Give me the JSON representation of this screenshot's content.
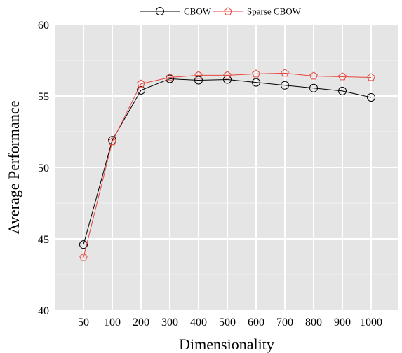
{
  "chart_data": {
    "type": "line",
    "title": "",
    "xlabel": "Dimensionality",
    "ylabel": "Average Performance",
    "categories": [
      "50",
      "100",
      "200",
      "300",
      "400",
      "500",
      "600",
      "700",
      "800",
      "900",
      "1000"
    ],
    "ylim": [
      40,
      60
    ],
    "yticks": [
      "40",
      "45",
      "50",
      "55",
      "60"
    ],
    "grid": true,
    "legend_position": "top",
    "series": [
      {
        "name": "CBOW",
        "marker": "circle",
        "color": "#000000",
        "values": [
          44.6,
          51.9,
          55.4,
          56.2,
          56.1,
          56.15,
          55.95,
          55.75,
          55.55,
          55.35,
          54.9
        ]
      },
      {
        "name": "Sparse CBOW",
        "marker": "pentagon",
        "color": "#e8453c",
        "values": [
          43.7,
          51.8,
          55.85,
          56.3,
          56.45,
          56.45,
          56.55,
          56.6,
          56.4,
          56.35,
          56.3
        ]
      }
    ]
  }
}
